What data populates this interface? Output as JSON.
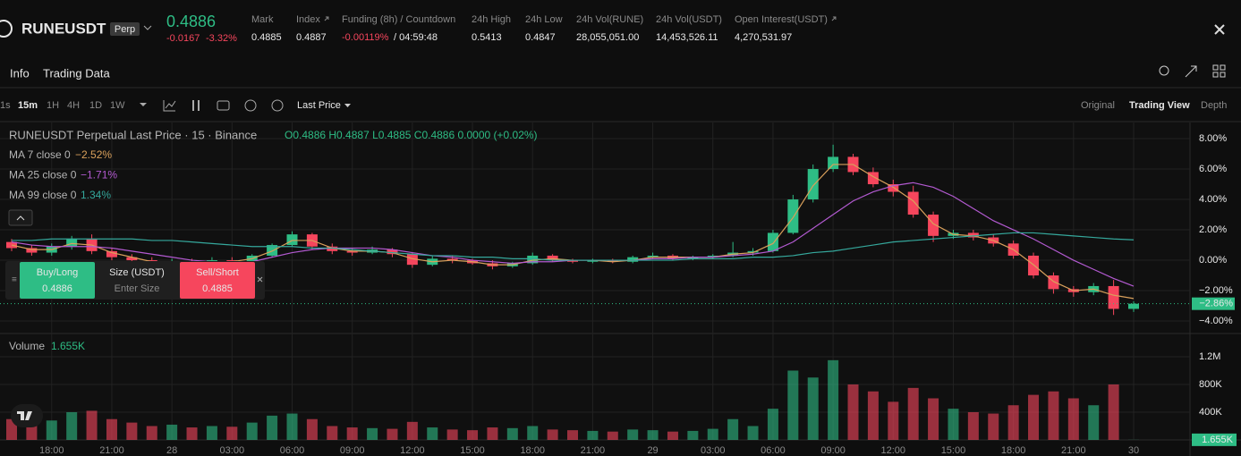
{
  "header": {
    "symbol": "RUNEUSDT",
    "badge": "Perp",
    "price": "0.4886",
    "change": "-0.0167",
    "change_pct": "-3.32%",
    "stats": [
      {
        "label": "Mark",
        "value": "0.4885"
      },
      {
        "label": "Index",
        "value": "0.4887"
      },
      {
        "label": "Funding (8h) / Countdown",
        "value": "-0.00119%",
        "countdown": "/ 04:59:48"
      },
      {
        "label": "24h High",
        "value": "0.5413"
      },
      {
        "label": "24h Low",
        "value": "0.4847"
      },
      {
        "label": "24h Vol(RUNE)",
        "value": "28,055,051.00"
      },
      {
        "label": "24h Vol(USDT)",
        "value": "14,453,526.11"
      },
      {
        "label": "Open Interest(USDT)",
        "value": "4,270,531.97"
      }
    ]
  },
  "tabs": [
    "Info",
    "Trading Data"
  ],
  "toolbar": {
    "intervals": [
      "1s",
      "15m",
      "1H",
      "4H",
      "1D",
      "1W"
    ],
    "price_type": "Last Price",
    "views": [
      "Original",
      "Trading View",
      "Depth"
    ]
  },
  "trade_panel": {
    "buy_label": "Buy/Long",
    "buy_price": "0.4886",
    "size_label": "Size (USDT)",
    "size_placeholder": "Enter Size",
    "sell_label": "Sell/Short",
    "sell_price": "0.4885"
  },
  "chart_data": {
    "type": "candlestick",
    "title": "RUNEUSDT Perpetual Last Price · 15 · Binance",
    "ohlc_legend": "O0.4886 H0.4887 L0.4885 C0.4886 0.0000 (+0.02%)",
    "up_color": "#2ebd85",
    "down_color": "#f6465d",
    "grid": true,
    "categories": [
      null,
      null,
      "18:00",
      null,
      null,
      "21:00",
      null,
      null,
      "28",
      null,
      null,
      "03:00",
      null,
      null,
      "06:00",
      null,
      null,
      "09:00",
      null,
      null,
      "12:00",
      null,
      null,
      "15:00",
      null,
      null,
      "18:00",
      null,
      null,
      "21:00",
      null,
      null,
      "29",
      null,
      null,
      "03:00",
      null,
      null,
      "06:00",
      null,
      null,
      "09:00",
      null,
      null,
      "12:00",
      null,
      null,
      "15:00",
      null,
      null,
      "18:00",
      null,
      null,
      "21:00",
      null,
      null,
      "30"
    ],
    "ohlc": [
      [
        1.2,
        1.4,
        0.6,
        0.8
      ],
      [
        0.8,
        1.0,
        0.3,
        0.5
      ],
      [
        0.5,
        1.1,
        0.3,
        0.9
      ],
      [
        0.9,
        1.6,
        0.7,
        1.4
      ],
      [
        1.4,
        1.7,
        0.4,
        0.6
      ],
      [
        0.6,
        0.8,
        0.0,
        0.2
      ],
      [
        0.2,
        0.4,
        -0.2,
        0.0
      ],
      [
        0.0,
        0.2,
        -0.5,
        -0.3
      ],
      [
        -0.3,
        0.1,
        -0.4,
        -0.1
      ],
      [
        -0.1,
        0.1,
        -0.4,
        -0.2
      ],
      [
        -0.2,
        0.2,
        -0.3,
        0.0
      ],
      [
        0.0,
        0.2,
        -0.3,
        -0.1
      ],
      [
        -0.1,
        0.4,
        -0.2,
        0.3
      ],
      [
        0.3,
        1.1,
        0.2,
        1.0
      ],
      [
        1.0,
        1.9,
        0.9,
        1.7
      ],
      [
        1.7,
        1.8,
        0.7,
        0.9
      ],
      [
        0.9,
        1.1,
        0.4,
        0.6
      ],
      [
        0.6,
        0.8,
        0.3,
        0.5
      ],
      [
        0.5,
        0.9,
        0.4,
        0.7
      ],
      [
        0.7,
        0.8,
        0.2,
        0.4
      ],
      [
        0.4,
        0.5,
        -0.5,
        -0.3
      ],
      [
        -0.3,
        0.3,
        -0.4,
        0.1
      ],
      [
        0.1,
        0.3,
        -0.2,
        0.0
      ],
      [
        0.0,
        0.1,
        -0.3,
        -0.2
      ],
      [
        -0.2,
        0.0,
        -0.6,
        -0.4
      ],
      [
        -0.4,
        -0.1,
        -0.5,
        -0.2
      ],
      [
        -0.2,
        0.5,
        -0.3,
        0.3
      ],
      [
        0.3,
        0.4,
        -0.1,
        0.0
      ],
      [
        0.0,
        0.1,
        -0.2,
        -0.1
      ],
      [
        -0.1,
        0.1,
        -0.2,
        0.0
      ],
      [
        0.0,
        0.1,
        -0.2,
        -0.1
      ],
      [
        -0.1,
        0.3,
        -0.2,
        0.2
      ],
      [
        0.2,
        0.5,
        0.1,
        0.3
      ],
      [
        0.3,
        0.4,
        0.0,
        0.1
      ],
      [
        0.1,
        0.3,
        0.0,
        0.2
      ],
      [
        0.2,
        0.4,
        0.1,
        0.3
      ],
      [
        0.3,
        1.2,
        0.2,
        0.5
      ],
      [
        0.5,
        0.8,
        0.3,
        0.6
      ],
      [
        0.6,
        2.0,
        0.5,
        1.8
      ],
      [
        1.8,
        4.3,
        1.7,
        4.0
      ],
      [
        4.0,
        6.3,
        3.8,
        6.0
      ],
      [
        6.0,
        7.6,
        5.8,
        6.8
      ],
      [
        6.8,
        7.0,
        5.6,
        5.8
      ],
      [
        5.8,
        6.1,
        4.8,
        5.0
      ],
      [
        5.0,
        5.3,
        4.2,
        4.5
      ],
      [
        4.5,
        4.9,
        2.8,
        3.0
      ],
      [
        3.0,
        3.2,
        1.2,
        1.6
      ],
      [
        1.6,
        2.0,
        1.4,
        1.8
      ],
      [
        1.8,
        2.0,
        1.3,
        1.5
      ],
      [
        1.5,
        1.7,
        0.9,
        1.1
      ],
      [
        1.1,
        1.3,
        0.1,
        0.3
      ],
      [
        0.3,
        0.5,
        -1.2,
        -1.0
      ],
      [
        -1.0,
        -0.8,
        -2.2,
        -1.9
      ],
      [
        -1.9,
        -1.7,
        -2.4,
        -2.1
      ],
      [
        -2.1,
        -1.5,
        -2.3,
        -1.7
      ],
      [
        -1.7,
        -1.3,
        -3.6,
        -3.2
      ],
      [
        -3.2,
        -2.7,
        -3.4,
        -2.86
      ]
    ],
    "last_label": "−2.86%",
    "ylim": [
      -4.82,
      9.06
    ],
    "yticks": [
      {
        "value": -4,
        "label": "−4.00%"
      },
      {
        "value": -2,
        "label": "−2.00%"
      },
      {
        "value": 0,
        "label": "0.00%"
      },
      {
        "value": 2,
        "label": "2.00%"
      },
      {
        "value": 4,
        "label": "4.00%"
      },
      {
        "value": 6,
        "label": "6.00%"
      },
      {
        "value": 8,
        "label": "8.00%"
      }
    ],
    "series": [
      {
        "name": "MA 7 close 0",
        "color": "#d9a05b",
        "last_label": "−2.52%",
        "values": [
          1.0,
          0.7,
          0.7,
          1.1,
          1.0,
          0.5,
          0.2,
          -0.1,
          -0.2,
          -0.2,
          -0.1,
          -0.1,
          0.1,
          0.6,
          1.3,
          1.3,
          0.8,
          0.6,
          0.6,
          0.5,
          0.1,
          -0.1,
          0.0,
          -0.1,
          -0.3,
          -0.3,
          0.0,
          0.1,
          0.0,
          0.0,
          -0.1,
          0.0,
          0.2,
          0.2,
          0.2,
          0.2,
          0.4,
          0.5,
          1.1,
          2.8,
          4.9,
          6.3,
          6.3,
          5.5,
          4.8,
          3.9,
          2.4,
          1.7,
          1.6,
          1.3,
          0.7,
          -0.3,
          -1.4,
          -2.0,
          -1.9,
          -2.3,
          -2.52
        ]
      },
      {
        "name": "MA 25 close 0",
        "color": "#b35ad1",
        "last_label": "−1.71%",
        "values": [
          1.2,
          1.0,
          0.9,
          0.9,
          0.9,
          0.8,
          0.6,
          0.4,
          0.2,
          0.0,
          -0.1,
          -0.2,
          -0.1,
          0.2,
          0.5,
          0.7,
          0.8,
          0.8,
          0.8,
          0.7,
          0.5,
          0.3,
          0.2,
          0.0,
          -0.1,
          -0.2,
          -0.1,
          -0.1,
          0.0,
          0.0,
          0.0,
          0.0,
          0.1,
          0.1,
          0.2,
          0.2,
          0.3,
          0.4,
          0.6,
          1.2,
          2.1,
          3.0,
          3.9,
          4.5,
          4.9,
          5.1,
          4.8,
          4.2,
          3.4,
          2.6,
          2.0,
          1.4,
          0.7,
          0.0,
          -0.6,
          -1.2,
          -1.71
        ]
      },
      {
        "name": "MA 99 close 0",
        "color": "#35a89c",
        "last_label": "1.34%",
        "values": [
          1.3,
          1.3,
          1.4,
          1.4,
          1.4,
          1.4,
          1.4,
          1.3,
          1.3,
          1.2,
          1.1,
          1.0,
          0.9,
          0.9,
          0.9,
          0.8,
          0.8,
          0.7,
          0.6,
          0.5,
          0.4,
          0.3,
          0.3,
          0.2,
          0.2,
          0.1,
          0.1,
          0.0,
          0.0,
          0.0,
          0.0,
          0.0,
          0.0,
          0.0,
          0.1,
          0.1,
          0.1,
          0.2,
          0.2,
          0.3,
          0.5,
          0.6,
          0.8,
          1.0,
          1.2,
          1.3,
          1.4,
          1.5,
          1.6,
          1.7,
          1.8,
          1.8,
          1.7,
          1.6,
          1.5,
          1.4,
          1.34
        ]
      }
    ],
    "volume": {
      "title": "Volume",
      "current_label": "1.655K",
      "ylim": [
        0,
        1535000
      ],
      "yticks": [
        {
          "value": 400000,
          "label": "400K"
        },
        {
          "value": 800000,
          "label": "800K"
        },
        {
          "value": 1200000,
          "label": "1.2M"
        }
      ],
      "values": [
        300000,
        350000,
        280000,
        400000,
        420000,
        300000,
        250000,
        200000,
        220000,
        180000,
        200000,
        190000,
        250000,
        350000,
        380000,
        300000,
        200000,
        180000,
        170000,
        160000,
        260000,
        180000,
        150000,
        140000,
        180000,
        170000,
        200000,
        150000,
        140000,
        130000,
        120000,
        150000,
        140000,
        120000,
        130000,
        160000,
        300000,
        200000,
        450000,
        1000000,
        900000,
        1150000,
        800000,
        700000,
        550000,
        750000,
        600000,
        450000,
        400000,
        380000,
        500000,
        650000,
        700000,
        600000,
        500000,
        800000,
        1655
      ]
    }
  }
}
